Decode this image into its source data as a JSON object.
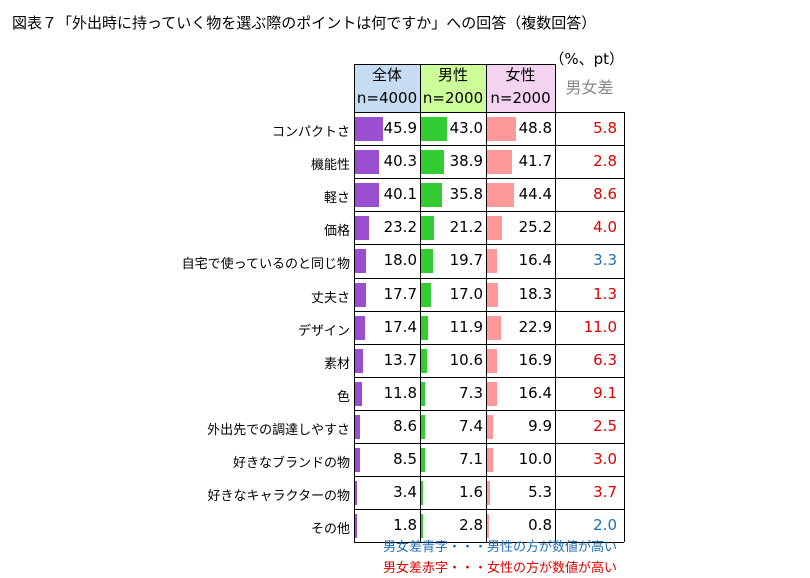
{
  "title": "図表７「外出時に持っていく物を選ぶ際のポイントは何ですか」への回答（複数回答）",
  "unit": "（%、pt）",
  "headers": {
    "all": {
      "name": "全体",
      "n": "n=4000"
    },
    "male": {
      "name": "男性",
      "n": "n=2000"
    },
    "female": {
      "name": "女性",
      "n": "n=2000"
    },
    "diff": "男女差"
  },
  "legend": {
    "blue": "男女差青字・・・男性の方が数値が高い",
    "red": "男女差赤字・・・女性の方が数値が高い"
  },
  "colors": {
    "all_bar": "#9a4fd0",
    "male_bar": "#33cc33",
    "female_bar": "#ff9999",
    "diff_blue": "#1f6fb8",
    "diff_red": "#e00000"
  },
  "chart_data": {
    "type": "bar",
    "categories": [
      "コンパクトさ",
      "機能性",
      "軽さ",
      "価格",
      "自宅で使っているのと同じ物",
      "丈夫さ",
      "デザイン",
      "素材",
      "色",
      "外出先での調達しやすさ",
      "好きなブランドの物",
      "好きなキャラクターの物",
      "その他"
    ],
    "series": [
      {
        "name": "全体",
        "values": [
          45.9,
          40.3,
          40.1,
          23.2,
          18.0,
          17.7,
          17.4,
          13.7,
          11.8,
          8.6,
          8.5,
          3.4,
          1.8
        ]
      },
      {
        "name": "男性",
        "values": [
          43.0,
          38.9,
          35.8,
          21.2,
          19.7,
          17.0,
          11.9,
          10.6,
          7.3,
          7.4,
          7.1,
          1.6,
          2.8
        ]
      },
      {
        "name": "女性",
        "values": [
          48.8,
          41.7,
          44.4,
          25.2,
          16.4,
          18.3,
          22.9,
          16.9,
          16.4,
          9.9,
          10.0,
          5.3,
          0.8
        ]
      }
    ],
    "diff": [
      {
        "value": "5.8",
        "sign": "red"
      },
      {
        "value": "2.8",
        "sign": "red"
      },
      {
        "value": "8.6",
        "sign": "red"
      },
      {
        "value": "4.0",
        "sign": "red"
      },
      {
        "value": "3.3",
        "sign": "blue"
      },
      {
        "value": "1.3",
        "sign": "red"
      },
      {
        "value": "11.0",
        "sign": "red"
      },
      {
        "value": "6.3",
        "sign": "red"
      },
      {
        "value": "9.1",
        "sign": "red"
      },
      {
        "value": "2.5",
        "sign": "red"
      },
      {
        "value": "3.0",
        "sign": "red"
      },
      {
        "value": "3.7",
        "sign": "red"
      },
      {
        "value": "2.0",
        "sign": "blue"
      }
    ]
  }
}
